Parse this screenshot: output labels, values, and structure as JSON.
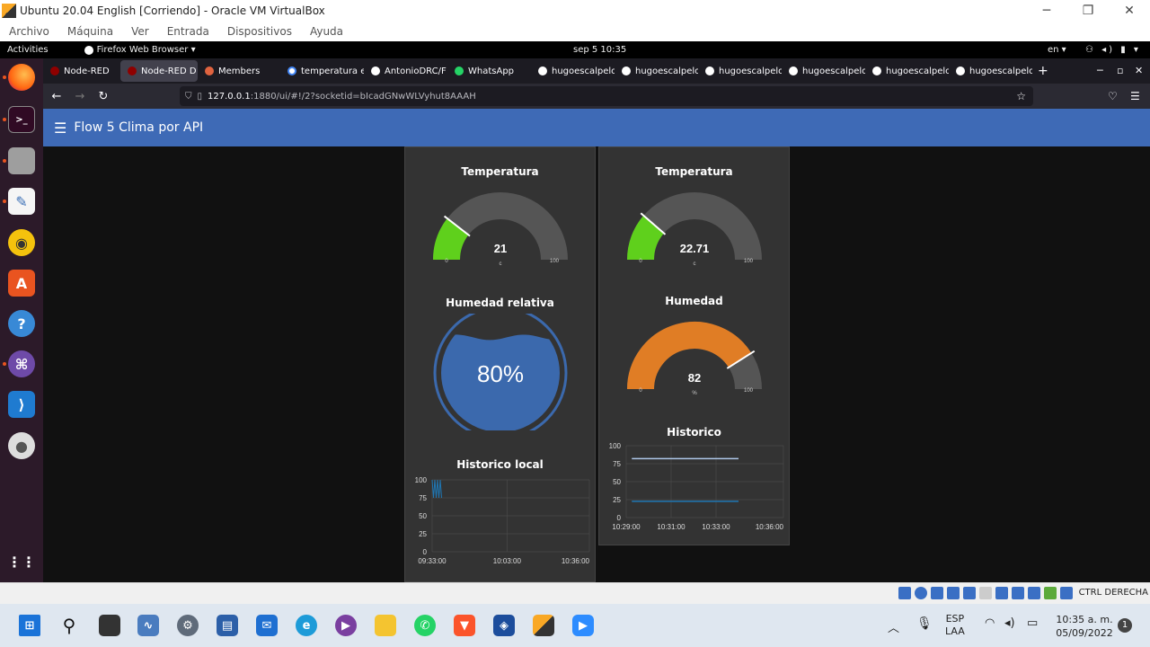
{
  "host": {
    "title": "Ubuntu 20.04 English [Corriendo] - Oracle VM VirtualBox",
    "menu": [
      "Archivo",
      "Máquina",
      "Ver",
      "Entrada",
      "Dispositivos",
      "Ayuda"
    ],
    "status_text": "CTRL DERECHA"
  },
  "gnome": {
    "activities": "Activities",
    "app_menu": "Firefox Web Browser ▾",
    "clock": "sep 5  10:35",
    "lang": "en ▾"
  },
  "browser": {
    "tabs": [
      {
        "label": "Node-RED",
        "active": false
      },
      {
        "label": "Node-RED D",
        "active": true
      },
      {
        "label": "Members",
        "active": false
      },
      {
        "label": "temperatura e",
        "active": false
      },
      {
        "label": "AntonioDRC/F",
        "active": false
      },
      {
        "label": "WhatsApp",
        "active": false
      },
      {
        "label": "hugoescalpelo",
        "active": false
      },
      {
        "label": "hugoescalpelo",
        "active": false
      },
      {
        "label": "hugoescalpelo",
        "active": false
      },
      {
        "label": "hugoescalpelo",
        "active": false
      },
      {
        "label": "hugoescalpelo",
        "active": false
      },
      {
        "label": "hugoescalpelo",
        "active": false
      }
    ],
    "url_host": "127.0.0.1",
    "url_rest": ":1880/ui/#!/2?socketid=bIcadGNwWLVyhut8AAAH"
  },
  "dashboard": {
    "title": "Flow 5 Clima por API",
    "left": {
      "temp_title": "Temperatura",
      "temp_value": "21",
      "temp_unit": "c",
      "temp_min": "0",
      "temp_max": "100",
      "temp_level": 0.21,
      "hum_title": "Humedad relativa",
      "hum_value": "80%",
      "hum_level": 0.8,
      "chart_title": "Historico local"
    },
    "right": {
      "temp_title": "Temperatura",
      "temp_value": "22.71",
      "temp_unit": "c",
      "temp_min": "0",
      "temp_max": "100",
      "temp_level": 0.2271,
      "hum_title": "Humedad",
      "hum_value": "82",
      "hum_unit": "%",
      "hum_min": "0",
      "hum_max": "100",
      "hum_level": 0.82,
      "chart_title": "Historico"
    },
    "colors": {
      "header": "#3e6ab6",
      "green": "#5fd01c",
      "orange": "#e07d25",
      "track": "#555555",
      "water": "#3b69ad"
    }
  },
  "chart_data": [
    {
      "type": "line",
      "title": "Historico local",
      "y_ticks": [
        "100",
        "75",
        "50",
        "25",
        "0"
      ],
      "x_ticks": [
        "09:33:00",
        "10:03:00",
        "10:36:00"
      ],
      "ylim": [
        0,
        100
      ],
      "series": [
        {
          "values_range": [
            75,
            100
          ],
          "x_range": [
            "09:33:00",
            "09:37:00"
          ],
          "color": "#1f77b4"
        }
      ]
    },
    {
      "type": "line",
      "title": "Historico",
      "y_ticks": [
        "100",
        "75",
        "50",
        "25",
        "0"
      ],
      "x_ticks": [
        "10:29:00",
        "10:31:00",
        "10:33:00",
        "10:36:00"
      ],
      "ylim": [
        0,
        100
      ],
      "series": [
        {
          "x": [
            "10:29:15",
            "10:34:00"
          ],
          "y": [
            82,
            82
          ],
          "color": "#aec7e8"
        },
        {
          "x": [
            "10:29:15",
            "10:34:00"
          ],
          "y": [
            22.71,
            22.71
          ],
          "color": "#1f77b4"
        }
      ]
    }
  ],
  "windows": {
    "lang_top": "ESP",
    "lang_bottom": "LAA",
    "time": "10:35 a. m.",
    "date": "05/09/2022",
    "notif_count": "1"
  }
}
